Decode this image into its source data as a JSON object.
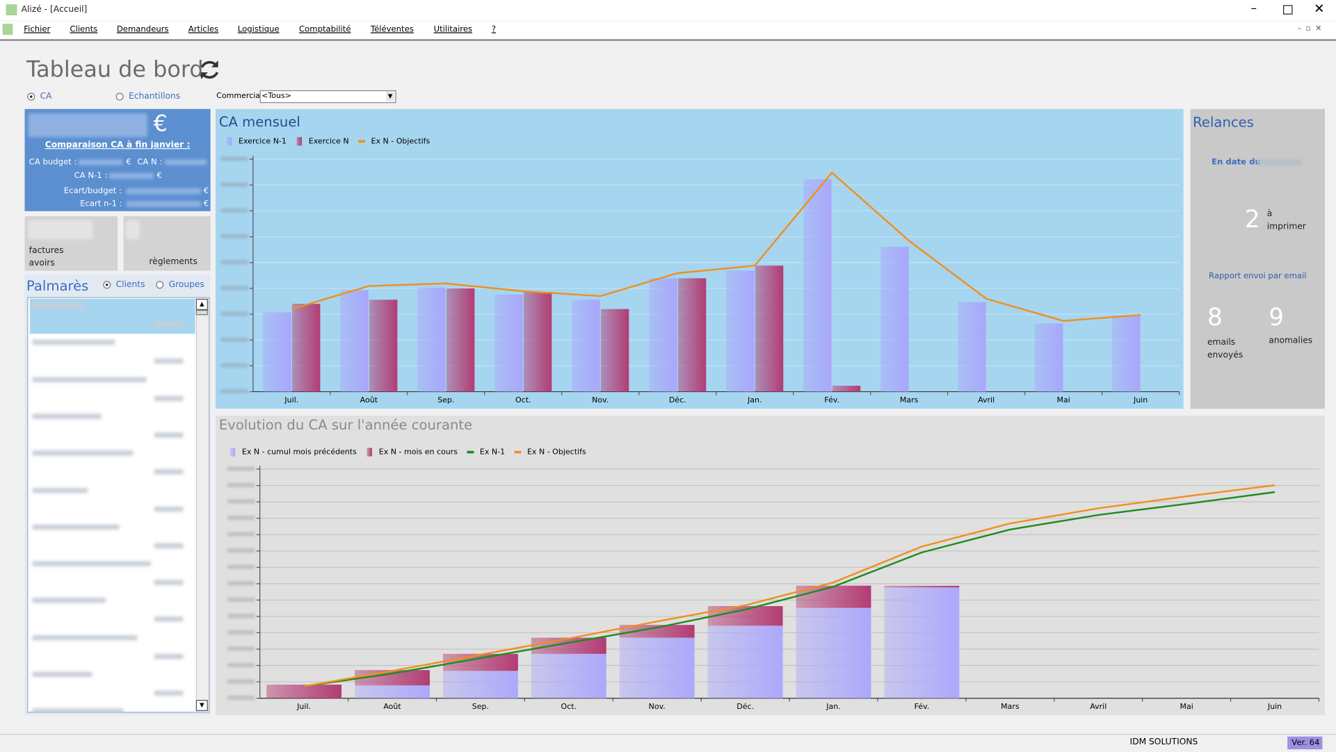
{
  "window": {
    "title": "Alizé - [Accueil]"
  },
  "menu": [
    "Fichier",
    "Clients",
    "Demandeurs",
    "Articles",
    "Logistique",
    "Comptabilité",
    "Téléventes",
    "Utilitaires",
    "?"
  ],
  "dashboard": {
    "title": "Tableau de bord",
    "mode_options": [
      "CA",
      "Echantillons"
    ],
    "commercial_label": "Commercial",
    "commercial_value": "<Tous>",
    "summary": {
      "currency": "€",
      "heading": "Comparaison CA  à fin janvier :",
      "rows": [
        "CA budget :",
        "CA N :",
        "CA N-1 :",
        "Ecart/budget :",
        "Ecart n-1 :"
      ],
      "unit": "€"
    },
    "counters": {
      "left": [
        "factures",
        "avoirs"
      ],
      "right": "règlements"
    },
    "palmares": {
      "title": "Palmarès",
      "options": [
        "Clients",
        "Groupes"
      ]
    },
    "relances": {
      "title": "Relances",
      "date_label": "En date du",
      "to_print_count": 2,
      "to_print_label": "à imprimer",
      "report_label": "Rapport envoi par email",
      "sent_count": 8,
      "sent_label": "emails envoyés",
      "anomalies_count": 9,
      "anomalies_label": "anomalies"
    }
  },
  "chart_data": [
    {
      "type": "bar",
      "title": "CA mensuel",
      "categories": [
        "Juil.",
        "Août",
        "Sep.",
        "Oct.",
        "Nov.",
        "Déc.",
        "Jan.",
        "Fév.",
        "Mars",
        "Avril",
        "Mai",
        "Juin"
      ],
      "series": [
        {
          "name": "Exercice N-1",
          "color": "#a9a6fb",
          "values": [
            3.07,
            3.93,
            4.03,
            3.76,
            3.56,
            4.39,
            4.69,
            8.22,
            5.61,
            3.47,
            2.64,
            2.94
          ]
        },
        {
          "name": "Exercice N",
          "color": "#b23c73",
          "values": [
            3.4,
            3.56,
            4.0,
            3.86,
            3.2,
            4.39,
            4.88,
            0.23,
            null,
            null,
            null,
            null
          ]
        },
        {
          "name": "Ex N - Objectifs",
          "color": "#f0901e",
          "type": "line",
          "values": [
            3.2,
            4.09,
            4.19,
            3.89,
            3.7,
            4.59,
            4.88,
            8.48,
            5.84,
            3.6,
            2.74,
            2.97
          ]
        }
      ],
      "ylim": [
        0,
        9
      ],
      "yticks": [
        0,
        1,
        2,
        3,
        4,
        5,
        6,
        7,
        8,
        9
      ],
      "grid": true
    },
    {
      "type": "bar",
      "title": "Evolution du CA sur l'année courante",
      "stacked": true,
      "categories": [
        "Juil.",
        "Août",
        "Sep.",
        "Oct.",
        "Nov.",
        "Déc.",
        "Jan.",
        "Fév.",
        "Mars",
        "Avril",
        "Mai",
        "Juin"
      ],
      "series": [
        {
          "name": "Ex N - cumul mois précédents",
          "color": "#aca8fc",
          "values": [
            0,
            0.78,
            1.67,
            2.71,
            3.7,
            4.43,
            5.52,
            6.77,
            null,
            null,
            null,
            null
          ]
        },
        {
          "name": "Ex N - mois en cours",
          "color": "#b23c73",
          "values": [
            0.83,
            0.94,
            1.04,
            0.99,
            0.78,
            1.2,
            1.36,
            0.1,
            null,
            null,
            null,
            null
          ]
        },
        {
          "name": "Ex N-1",
          "color": "#1e8c1e",
          "type": "line",
          "values": [
            0.73,
            1.51,
            2.45,
            3.39,
            4.32,
            5.42,
            6.82,
            8.91,
            10.31,
            11.2,
            11.88,
            12.6
          ]
        },
        {
          "name": "Ex N - Objectifs",
          "color": "#f0901e",
          "type": "line",
          "values": [
            0.73,
            1.67,
            2.66,
            3.65,
            4.69,
            5.68,
            7.08,
            9.27,
            10.68,
            11.61,
            12.34,
            13.02
          ]
        }
      ],
      "ylim": [
        0,
        14
      ],
      "yticks": [
        0,
        1,
        2,
        3,
        4,
        5,
        6,
        7,
        8,
        9,
        10,
        11,
        12,
        13,
        14
      ],
      "grid": true
    }
  ],
  "status_bar": {
    "company": "IDM SOLUTIONS",
    "version": "Ver. 64"
  }
}
